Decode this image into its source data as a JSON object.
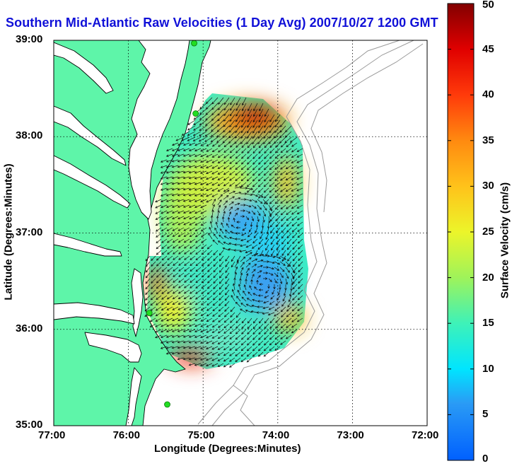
{
  "title": "Southern Mid-Atlantic Raw Velocities (1 Day Avg) 2007/10/27 1200 GMT",
  "x_axis": {
    "label": "Longitude (Degrees:Minutes)",
    "ticks": [
      "77:00",
      "76:00",
      "75:00",
      "74:00",
      "73:00",
      "72:00"
    ]
  },
  "y_axis": {
    "label": "Latitude (Degrees:Minutes)",
    "ticks": [
      "39:00",
      "38:00",
      "37:00",
      "36:00",
      "35:00"
    ]
  },
  "colorbar": {
    "label": "Surface Velocity (cm/s)",
    "min": 0,
    "max": 50,
    "ticks": [
      "50",
      "45",
      "40",
      "35",
      "30",
      "25",
      "20",
      "15",
      "10",
      "5",
      "0"
    ]
  },
  "colors": {
    "land": "#5ef5a9",
    "land_border": "#000000",
    "title": "#1010d8",
    "stations": "#22dd22",
    "bathymetry": "#999999"
  },
  "stations": [
    {
      "lon": -75.12,
      "lat": 38.97
    },
    {
      "lon": -75.1,
      "lat": 38.24
    },
    {
      "lon": -75.72,
      "lat": 36.17
    },
    {
      "lon": -75.48,
      "lat": 35.22
    }
  ]
}
